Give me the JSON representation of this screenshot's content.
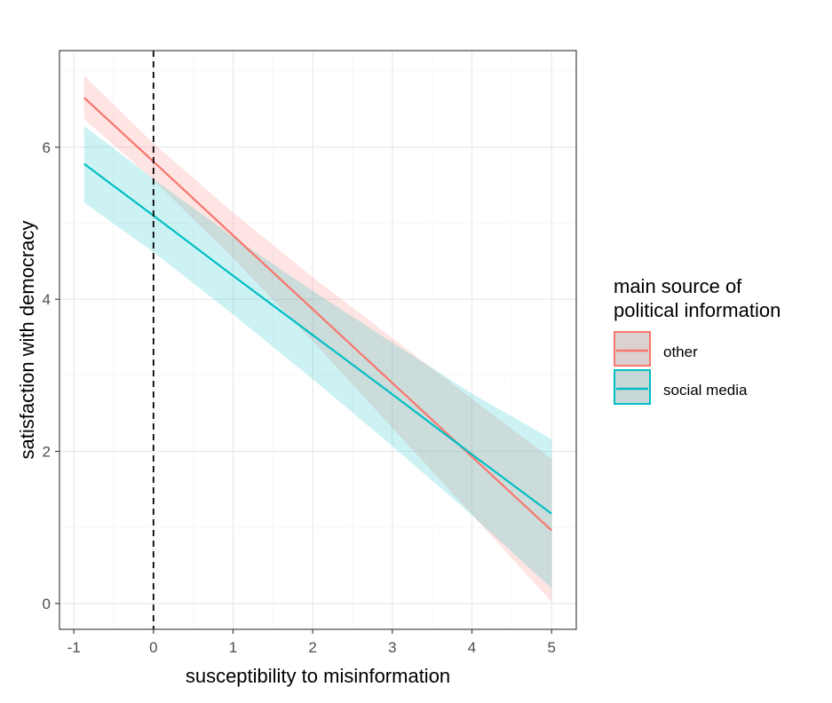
{
  "chart_data": {
    "type": "line",
    "title": "",
    "xlabel": "susceptibility to misinformation",
    "ylabel": "satisfaction with democracy",
    "xlim": [
      -1.18,
      5.31
    ],
    "ylim": [
      -0.34,
      7.27
    ],
    "x_ticks": [
      -1,
      0,
      1,
      2,
      3,
      4,
      5
    ],
    "x_tick_labels": [
      "-1",
      "0",
      "1",
      "2",
      "3",
      "4",
      "5"
    ],
    "y_ticks": [
      0,
      2,
      4,
      6
    ],
    "y_tick_labels": [
      "0",
      "2",
      "4",
      "6"
    ],
    "grid": true,
    "reference_line": {
      "x": 0,
      "style": "dashed",
      "color": "#000000"
    },
    "legend": {
      "title_lines": [
        "main source of",
        "political information"
      ],
      "placement": "right"
    },
    "series": [
      {
        "name": "other",
        "color": "#F8766D",
        "x": [
          -0.87,
          0,
          1,
          2,
          3,
          4,
          5
        ],
        "y": [
          6.65,
          5.81,
          4.84,
          3.87,
          2.9,
          1.93,
          0.96
        ],
        "lower": [
          6.37,
          5.57,
          4.54,
          3.45,
          2.31,
          1.17,
          0.02
        ],
        "upper": [
          6.94,
          6.05,
          5.14,
          4.29,
          3.49,
          2.69,
          1.9
        ]
      },
      {
        "name": "social media",
        "color": "#00BFC4",
        "x": [
          -0.87,
          0,
          1,
          2,
          3,
          4,
          5
        ],
        "y": [
          5.78,
          5.1,
          4.31,
          3.53,
          2.75,
          1.96,
          1.18
        ],
        "lower": [
          5.27,
          4.62,
          3.8,
          2.95,
          2.07,
          1.16,
          0.2
        ],
        "upper": [
          6.28,
          5.58,
          4.82,
          4.11,
          3.43,
          2.76,
          2.16
        ]
      }
    ]
  }
}
